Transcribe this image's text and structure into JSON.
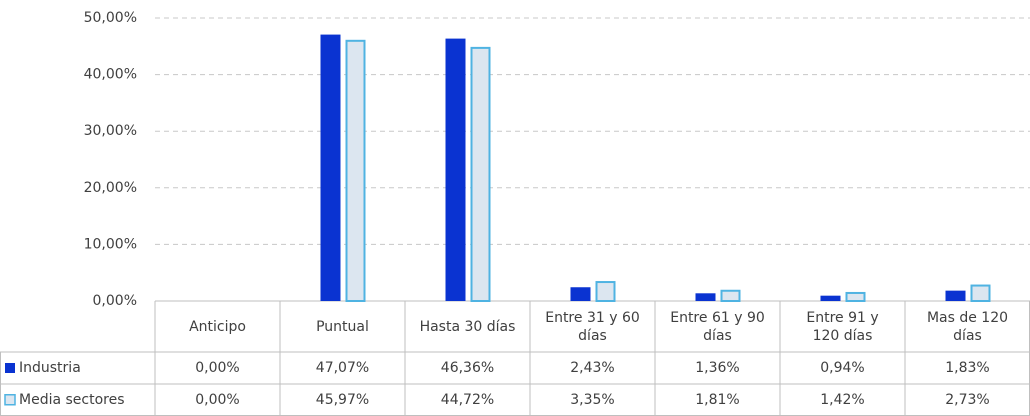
{
  "chart_data": {
    "type": "bar",
    "categories": [
      "Anticipo",
      "Puntual",
      "Hasta 30 días",
      "Entre 31 y 60 días",
      "Entre 61 y 90 días",
      "Entre 91 y 120 días",
      "Mas de 120 días"
    ],
    "series": [
      {
        "name": "Industria",
        "color": "#0a33d1",
        "values": [
          0,
          47.07,
          46.36,
          2.43,
          1.36,
          0.94,
          1.83
        ],
        "value_labels": [
          "0,00%",
          "47,07%",
          "46,36%",
          "2,43%",
          "1,36%",
          "0,94%",
          "1,83%"
        ]
      },
      {
        "name": "Media sectores",
        "color": "#dce6f0",
        "values": [
          0,
          45.97,
          44.72,
          3.35,
          1.81,
          1.42,
          2.73
        ],
        "value_labels": [
          "0,00%",
          "45,97%",
          "44,72%",
          "3,35%",
          "1,81%",
          "1,42%",
          "2,73%"
        ]
      }
    ],
    "ylim": [
      0,
      50
    ],
    "yticks": [
      {
        "value": 0,
        "label": "0,00%"
      },
      {
        "value": 10,
        "label": "10,00%"
      },
      {
        "value": 20,
        "label": "20,00%"
      },
      {
        "value": 30,
        "label": "30,00%"
      },
      {
        "value": 40,
        "label": "40,00%"
      },
      {
        "value": 50,
        "label": "50,00%"
      }
    ],
    "grid": true
  }
}
